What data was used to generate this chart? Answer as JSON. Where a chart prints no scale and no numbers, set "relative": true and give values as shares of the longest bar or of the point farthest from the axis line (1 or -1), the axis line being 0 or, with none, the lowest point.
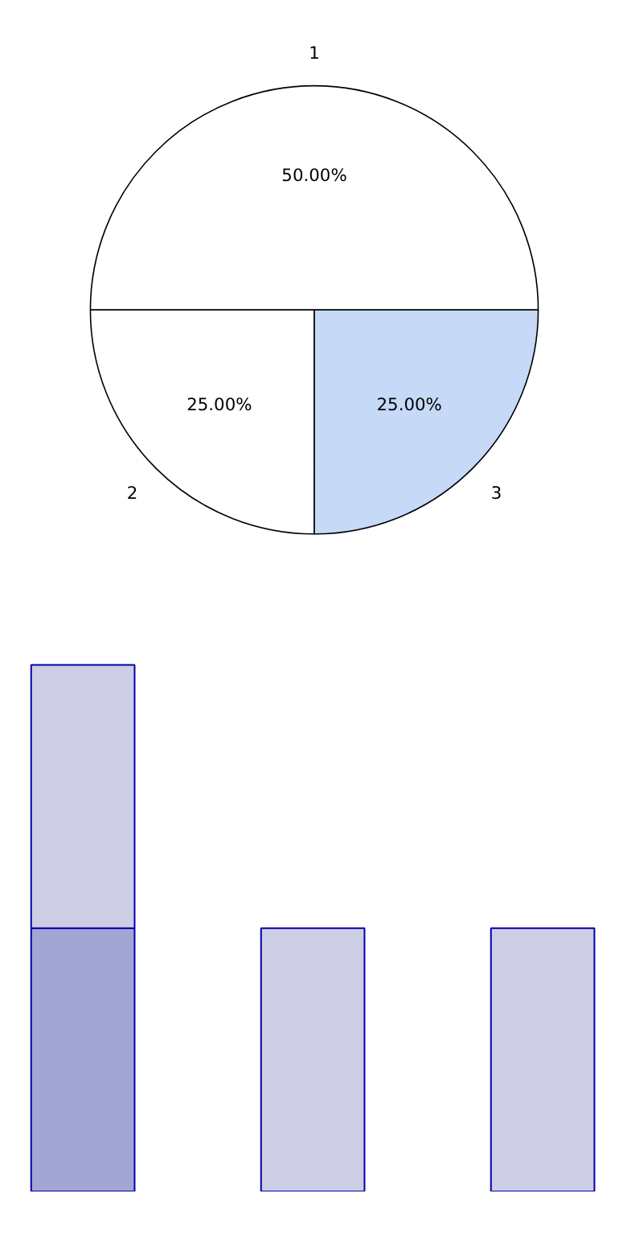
{
  "chart_data": [
    {
      "type": "pie",
      "categories": [
        "1",
        "2",
        "3"
      ],
      "values": [
        50,
        25,
        25
      ],
      "colors": [
        "#ffffff",
        "#ffffff",
        "#c6d9f7"
      ],
      "value_labels": [
        "50.00%",
        "25.00%",
        "25.00%"
      ]
    },
    {
      "type": "bar",
      "relative": true,
      "stacked": true,
      "categories": [
        null,
        null,
        null
      ],
      "grid": false,
      "series": [
        {
          "color": "#cdcde6",
          "colors": [
            "#a3a5d3",
            "#cdcde6",
            "#cdcde6"
          ],
          "values": [
            0.5,
            0.5,
            0.5
          ]
        },
        {
          "color": "#cdcde6",
          "values": [
            0.5,
            0,
            0
          ]
        }
      ]
    }
  ]
}
